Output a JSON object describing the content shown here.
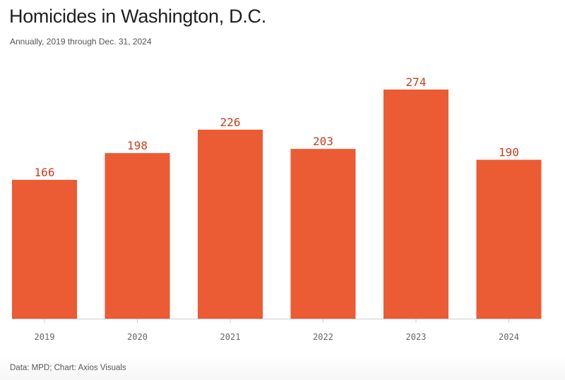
{
  "colors": {
    "bar": "#EB5B34",
    "value_label": "#C8401D",
    "axis": "#cccccc"
  },
  "chart_data": {
    "type": "bar",
    "title": "Homicides in Washington, D.C.",
    "subtitle": "Annually, 2019 through Dec. 31, 2024",
    "categories": [
      "2019",
      "2020",
      "2021",
      "2022",
      "2023",
      "2024"
    ],
    "values": [
      166,
      198,
      226,
      203,
      274,
      190
    ],
    "value_labels": [
      "166",
      "198",
      "226",
      "203",
      "274",
      "190"
    ],
    "xlabel": "",
    "ylabel": "",
    "ylim": [
      0,
      274
    ],
    "grid": false,
    "source": "Data: MPD; Chart: Axios Visuals"
  }
}
